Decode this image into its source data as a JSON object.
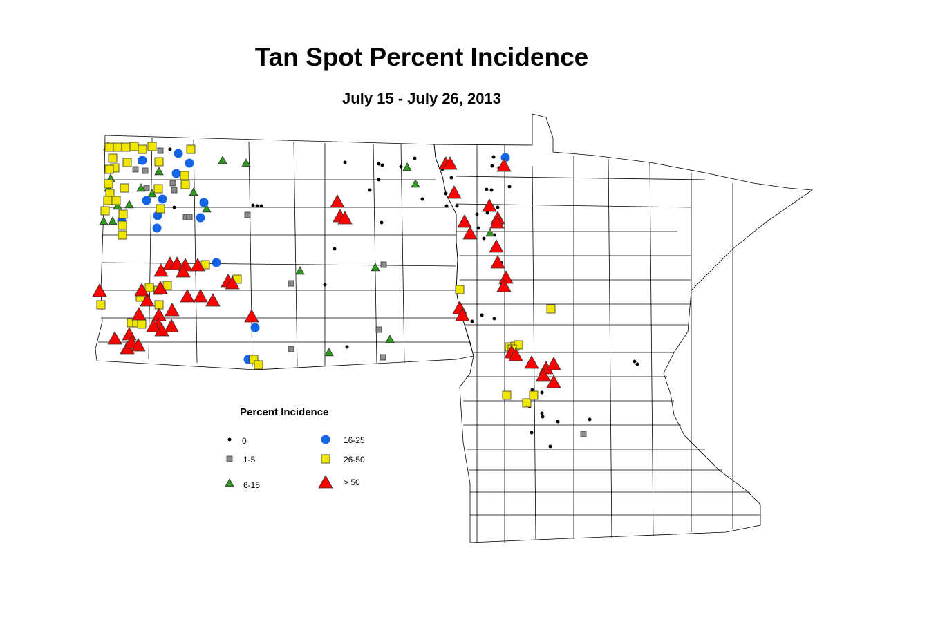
{
  "title": "Tan Spot Percent Incidence",
  "subtitle": "July 15 - July 26, 2013",
  "legend": {
    "title": "Percent Incidence",
    "items": [
      {
        "label": "0",
        "shape": "dot",
        "color": "#000000"
      },
      {
        "label": "1-5",
        "shape": "square-small",
        "color": "#8c8c8c"
      },
      {
        "label": "6-15",
        "shape": "triangle-small",
        "color": "#2e9a1e"
      },
      {
        "label": "16-25",
        "shape": "circle",
        "color": "#1464e6"
      },
      {
        "label": "26-50",
        "shape": "square",
        "color": "#f0e600"
      },
      {
        "label": "> 50",
        "shape": "triangle",
        "color": "#ff0000"
      }
    ]
  },
  "colors": {
    "county_border": "#000000",
    "background": "#ffffff"
  }
}
